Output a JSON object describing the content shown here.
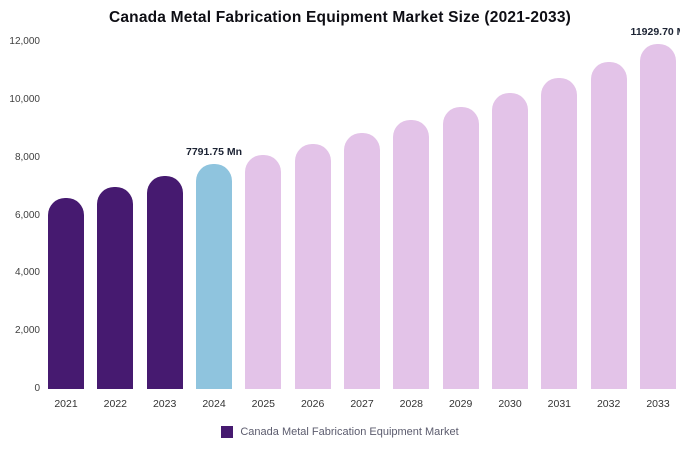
{
  "title": "Canada Metal Fabrication Equipment Market Size (2021-2033)",
  "legend": {
    "label": "Canada Metal Fabrication Equipment Market",
    "marker_color": "#461A70"
  },
  "colors": {
    "historical_bar": "#461A70",
    "current_bar": "#8FC4DE",
    "forecast_bar": "#E3C3E8",
    "background": "#FFFFFF"
  },
  "chart_data": {
    "type": "bar",
    "title": "Canada Metal Fabrication Equipment Market Size (2021-2033)",
    "categories": [
      "2021",
      "2022",
      "2023",
      "2024",
      "2025",
      "2026",
      "2027",
      "2028",
      "2029",
      "2030",
      "2031",
      "2032",
      "2033"
    ],
    "values": [
      6600,
      6980,
      7350,
      7791.75,
      8080,
      8470,
      8870,
      9300,
      9760,
      10240,
      10740,
      11300,
      11929.7
    ],
    "bar_colors": [
      "#461A70",
      "#461A70",
      "#461A70",
      "#8FC4DE",
      "#E3C3E8",
      "#E3C3E8",
      "#E3C3E8",
      "#E3C3E8",
      "#E3C3E8",
      "#E3C3E8",
      "#E3C3E8",
      "#E3C3E8",
      "#E3C3E8"
    ],
    "xlabel": "",
    "ylabel": "",
    "ylim": [
      0,
      12000
    ],
    "yticks": [
      0,
      2000,
      4000,
      6000,
      8000,
      10000,
      12000
    ],
    "ytick_labels": [
      "0",
      "2,000",
      "4,000",
      "6,000",
      "8,000",
      "10,000",
      "12,000"
    ],
    "grid": false,
    "legend_position": "bottom",
    "annotations": [
      {
        "category": "2024",
        "text": "7791.75 Mn"
      },
      {
        "category": "2033",
        "text": "11929.70 M"
      }
    ]
  }
}
